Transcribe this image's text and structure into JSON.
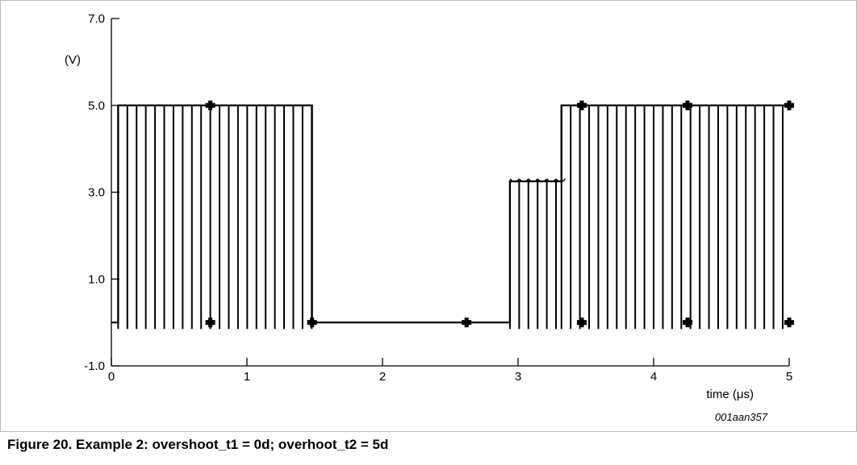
{
  "caption": "Figure 20.  Example 2: overshoot_t1 = 0d; overhoot_t2 = 5d",
  "figure_ref": "001aan357",
  "chart_data": {
    "type": "line",
    "title": "",
    "xlabel": "time (μs)",
    "ylabel": "(V)",
    "xlim": [
      0,
      5
    ],
    "ylim": [
      -1.0,
      7.0
    ],
    "xticks": [
      0,
      1,
      2,
      3,
      4,
      5
    ],
    "xtick_labels": [
      "0",
      "1",
      "2",
      "3",
      "4",
      "5"
    ],
    "yticks": [
      -1.0,
      1.0,
      3.0,
      5.0,
      7.0
    ],
    "ytick_labels": [
      "-1.0",
      "1.0",
      "3.0",
      "5.0",
      "7.0"
    ],
    "grid": false,
    "line_color": "#000000",
    "series": [
      {
        "x": [
          0,
          0.05,
          0.05,
          1.48,
          1.48,
          2.94,
          2.94,
          3.32,
          3.32,
          5.0
        ],
        "y": [
          0,
          0,
          5.0,
          5.0,
          0,
          0,
          3.25,
          3.25,
          5.0,
          5.0
        ]
      }
    ],
    "stripe_segments": [
      {
        "x_start": 0.05,
        "x_end": 1.48,
        "pitch": 0.068,
        "y_low": -0.15,
        "y_high": 5.0
      },
      {
        "x_start": 2.94,
        "x_end": 3.32,
        "pitch": 0.068,
        "y_low": -0.15,
        "y_high": 3.25
      },
      {
        "x_start": 3.32,
        "x_end": 5.0,
        "pitch": 0.068,
        "y_low": -0.15,
        "y_high": 5.0
      }
    ],
    "markers": [
      {
        "x": 0.73,
        "y": 5.0
      },
      {
        "x": 0.73,
        "y": 0
      },
      {
        "x": 1.48,
        "y": 0
      },
      {
        "x": 2.62,
        "y": 0
      },
      {
        "x": 3.47,
        "y": 5.0
      },
      {
        "x": 3.47,
        "y": 0
      },
      {
        "x": 4.25,
        "y": 5.0
      },
      {
        "x": 4.25,
        "y": 0
      },
      {
        "x": 5.0,
        "y": 5.0
      },
      {
        "x": 5.0,
        "y": 0
      }
    ]
  }
}
